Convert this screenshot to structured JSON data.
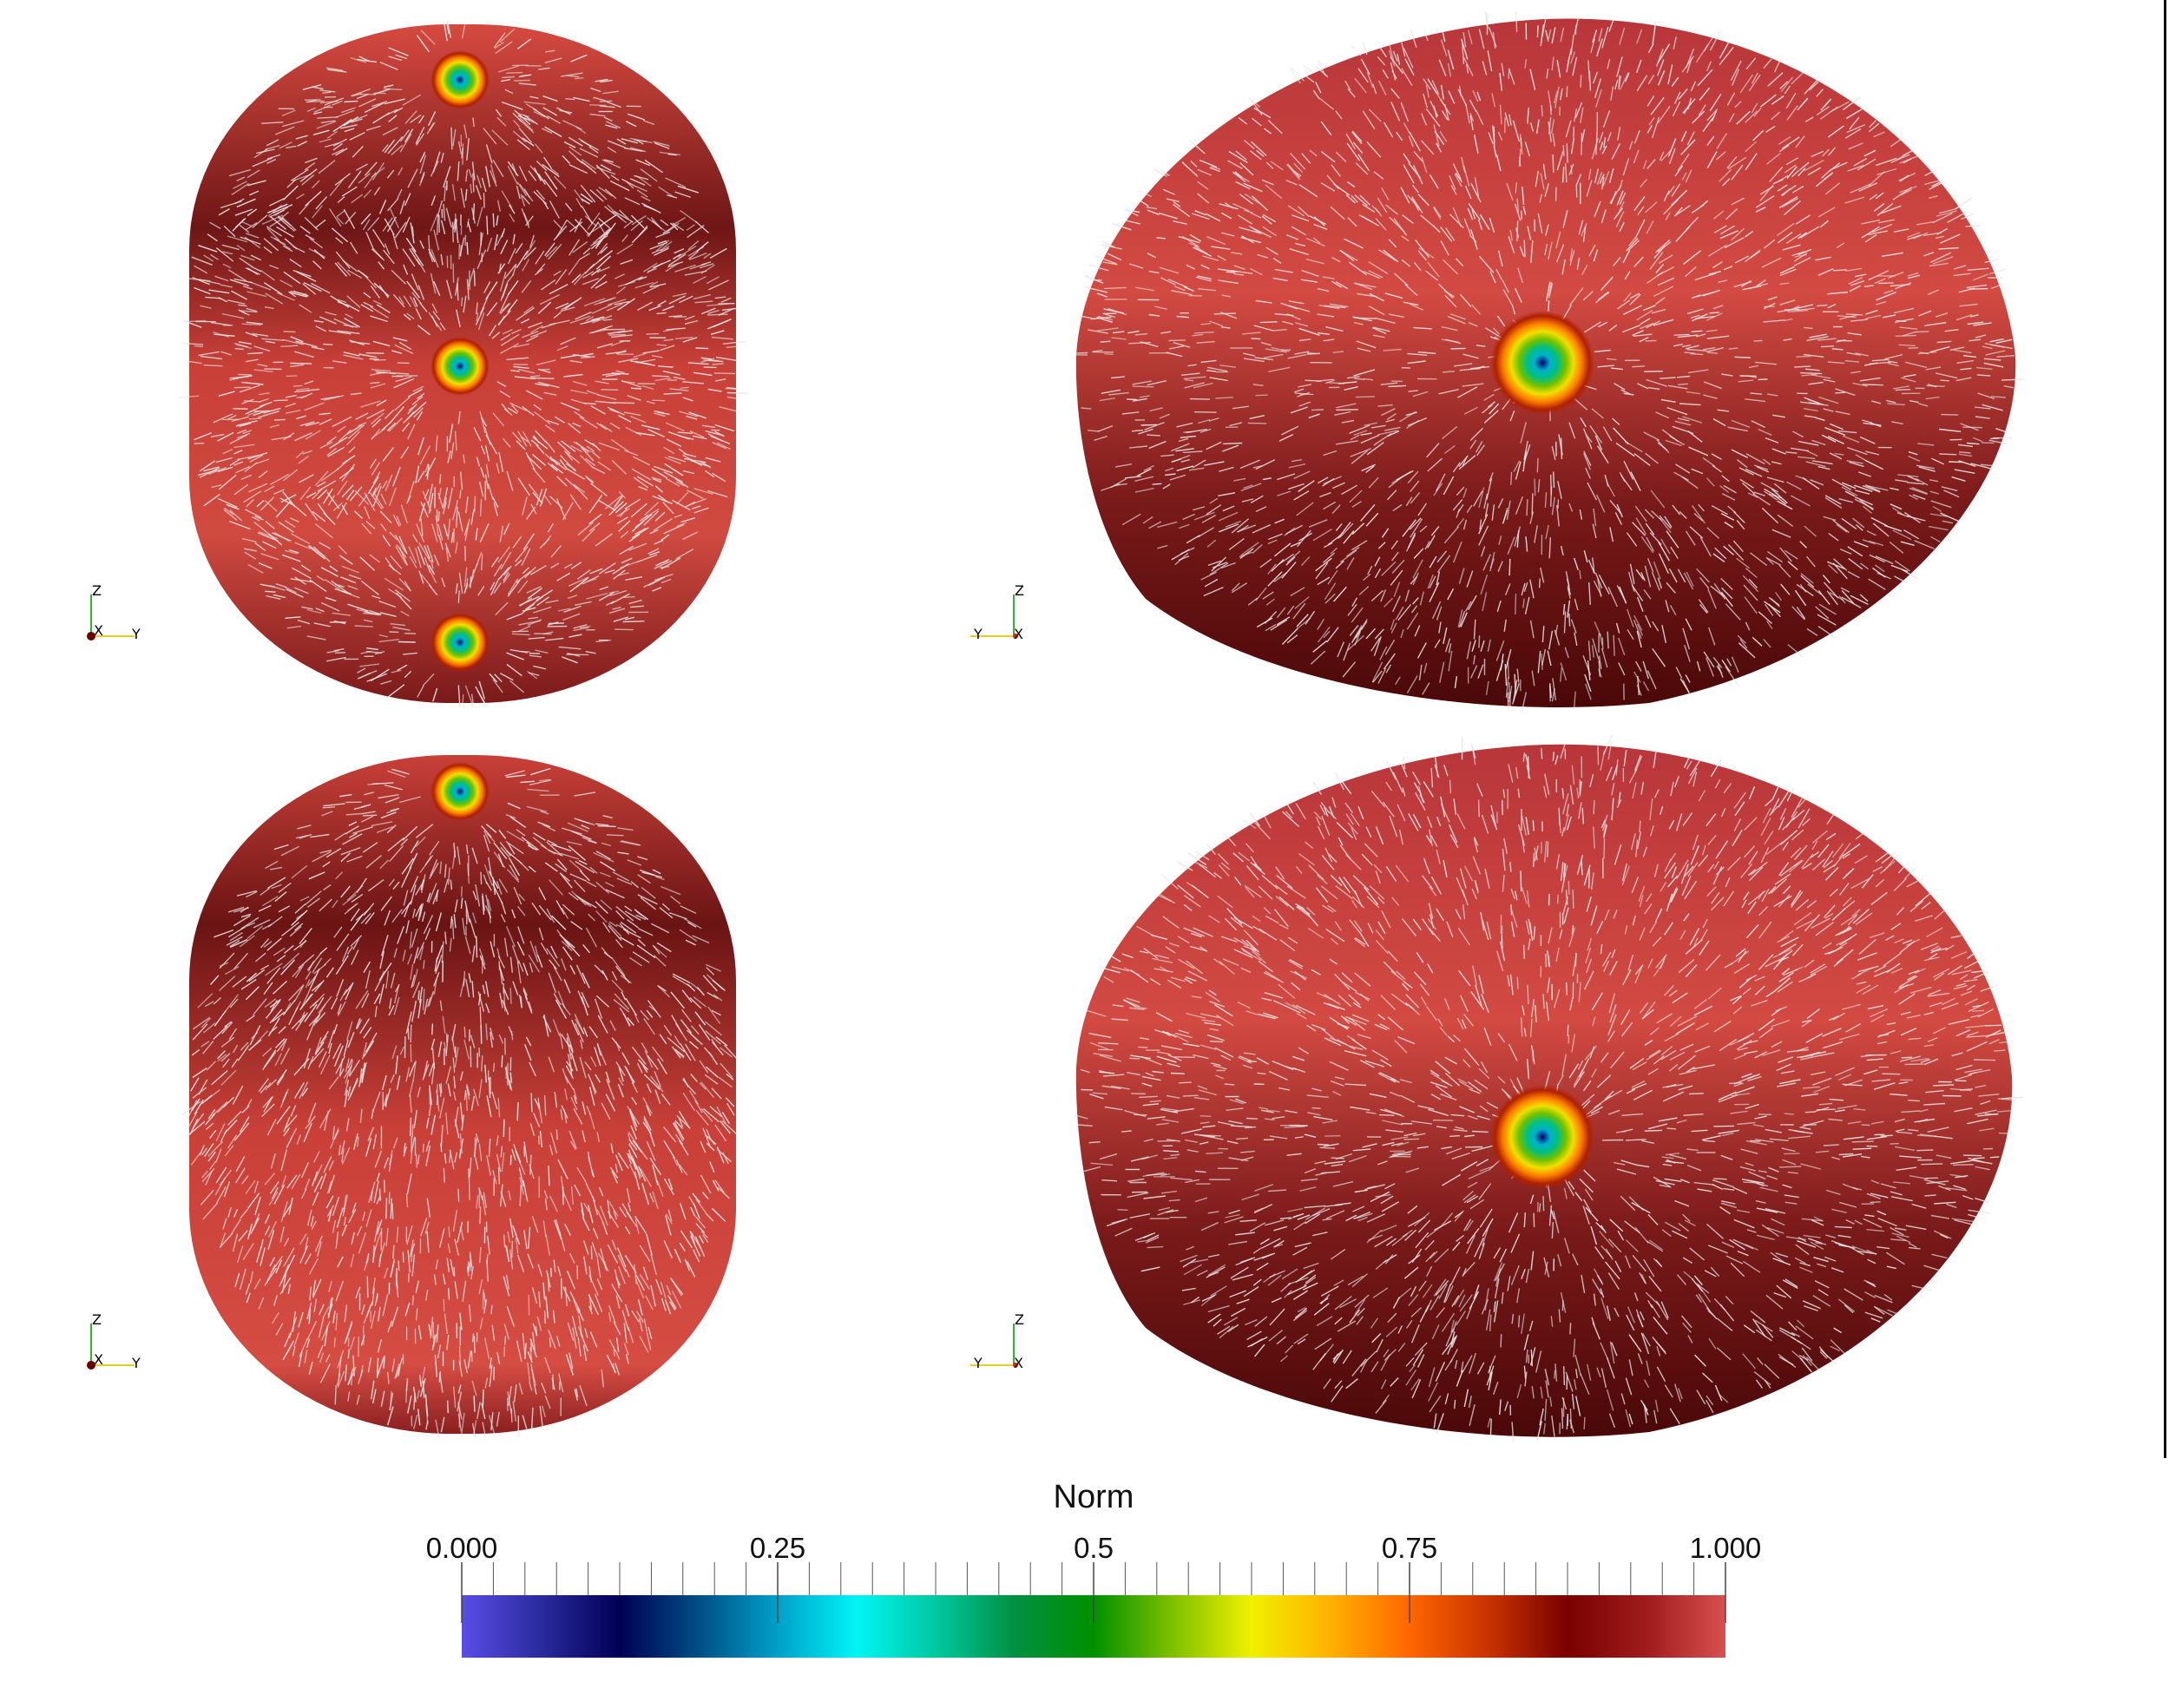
{
  "colorbar": {
    "title": "Norm",
    "ticks": [
      {
        "value": 0.0,
        "label": "0.000"
      },
      {
        "value": 0.25,
        "label": "0.25"
      },
      {
        "value": 0.5,
        "label": "0.5"
      },
      {
        "value": 0.75,
        "label": "0.75"
      },
      {
        "value": 1.0,
        "label": "1.000"
      }
    ],
    "colors": [
      "#5a4de6",
      "#2a2a9e",
      "#000055",
      "#004f85",
      "#00a0c8",
      "#00f5f5",
      "#00c8a0",
      "#009040",
      "#009000",
      "#80c000",
      "#f0f000",
      "#ffb000",
      "#ff6600",
      "#c83200",
      "#7a0000",
      "#a01c1c",
      "#d85050"
    ]
  },
  "views": [
    {
      "name": "top-left",
      "shape": "capsule",
      "axes": {
        "labels": [
          "Z",
          "X",
          "Y"
        ]
      }
    },
    {
      "name": "top-right",
      "shape": "ellipsoid",
      "axes": {
        "labels": [
          "Z",
          "Y",
          "X"
        ]
      }
    },
    {
      "name": "bottom-left",
      "shape": "capsule",
      "axes": {
        "labels": [
          "Z",
          "X",
          "Y"
        ]
      }
    },
    {
      "name": "bottom-right",
      "shape": "ellipsoid",
      "axes": {
        "labels": [
          "Z",
          "Y",
          "X"
        ]
      }
    }
  ]
}
